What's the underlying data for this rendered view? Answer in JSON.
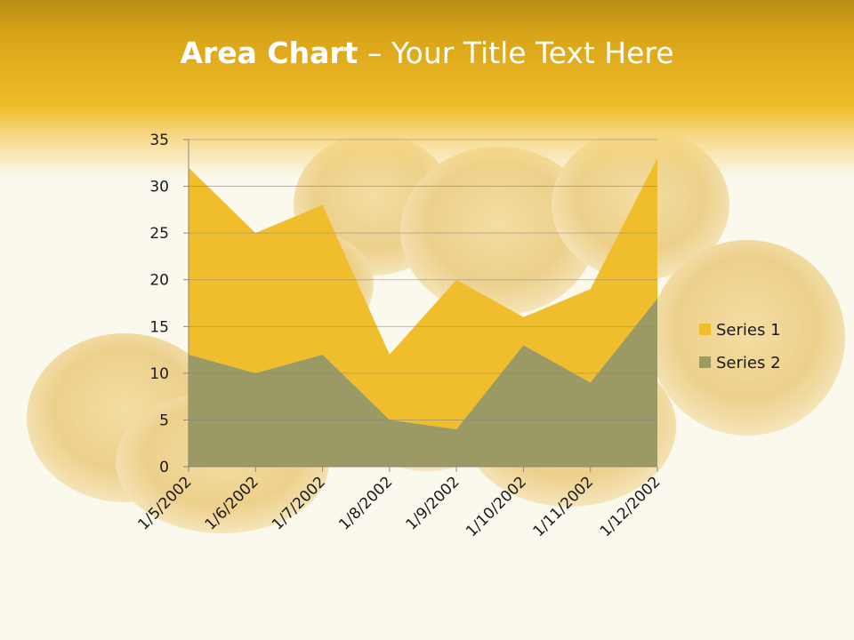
{
  "slide": {
    "title_bold": "Area Chart",
    "title_rest": " – Your Title Text Here"
  },
  "colors": {
    "series1": "#f0bd2c",
    "series2": "#9b9a64",
    "gridline": "#8a8a7a",
    "axis": "#8a8a7a"
  },
  "chart_data": {
    "type": "area",
    "stacked": true,
    "categories": [
      "1/5/2002",
      "1/6/2002",
      "1/7/2002",
      "1/8/2002",
      "1/9/2002",
      "1/10/2002",
      "1/11/2002",
      "1/12/2002"
    ],
    "series": [
      {
        "name": "Series 1",
        "values": [
          20,
          15,
          16,
          7,
          16,
          3,
          10,
          15
        ]
      },
      {
        "name": "Series 2",
        "values": [
          12,
          10,
          12,
          5,
          4,
          13,
          9,
          18
        ]
      }
    ],
    "ylim": [
      0,
      35
    ],
    "yticks": [
      0,
      5,
      10,
      15,
      20,
      25,
      30,
      35
    ],
    "grid": true,
    "legend": "right"
  }
}
